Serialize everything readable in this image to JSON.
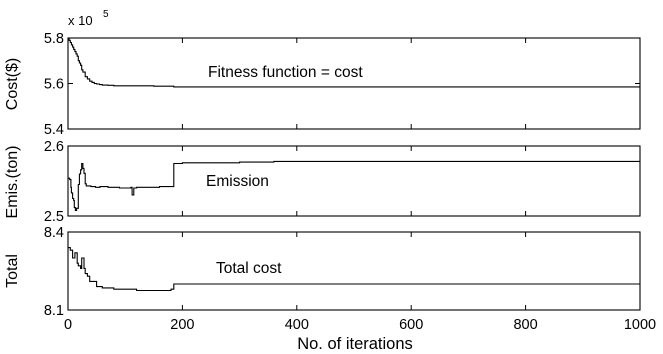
{
  "chart_data": [
    {
      "type": "line",
      "ylabel": "Cost($)",
      "annotation": "Fitness function = cost",
      "multiplier": {
        "base": "x 10",
        "exponent": "5"
      },
      "xlim": [
        0,
        1000
      ],
      "ylim": [
        5.4,
        5.8
      ],
      "yticks": [
        "5.8",
        "5.6",
        "5.4"
      ],
      "ytick_values": [
        5.8,
        5.6,
        5.4
      ],
      "series": [
        {
          "x": [
            0,
            2,
            4,
            6,
            8,
            10,
            12,
            14,
            16,
            18,
            20,
            22,
            24,
            26,
            30,
            34,
            38,
            42,
            46,
            50,
            55,
            60,
            70,
            80,
            100,
            120,
            150,
            180,
            185,
            300,
            500,
            700,
            1000
          ],
          "y": [
            5.8,
            5.79,
            5.78,
            5.77,
            5.76,
            5.75,
            5.74,
            5.73,
            5.72,
            5.7,
            5.69,
            5.68,
            5.66,
            5.65,
            5.63,
            5.62,
            5.61,
            5.605,
            5.6,
            5.598,
            5.595,
            5.593,
            5.592,
            5.59,
            5.59,
            5.59,
            5.588,
            5.588,
            5.585,
            5.585,
            5.585,
            5.585,
            5.585
          ]
        }
      ]
    },
    {
      "type": "line",
      "ylabel": "Emis.(ton)",
      "annotation": "Emission",
      "xlim": [
        0,
        1000
      ],
      "ylim": [
        2.5,
        2.6
      ],
      "yticks": [
        "2.6",
        "2.5"
      ],
      "ytick_values": [
        2.6,
        2.5
      ],
      "series": [
        {
          "x": [
            0,
            3,
            5,
            6,
            8,
            10,
            11,
            13,
            15,
            18,
            20,
            22,
            24,
            26,
            28,
            30,
            32,
            36,
            40,
            48,
            56,
            70,
            90,
            110,
            112,
            115,
            120,
            140,
            160,
            180,
            185,
            200,
            240,
            300,
            360,
            420,
            600,
            800,
            1000
          ],
          "y": [
            2.554,
            2.552,
            2.541,
            2.533,
            2.525,
            2.522,
            2.512,
            2.508,
            2.511,
            2.545,
            2.56,
            2.566,
            2.575,
            2.568,
            2.561,
            2.546,
            2.543,
            2.543,
            2.542,
            2.541,
            2.542,
            2.541,
            2.54,
            2.541,
            2.53,
            2.54,
            2.541,
            2.541,
            2.542,
            2.542,
            2.575,
            2.576,
            2.576,
            2.577,
            2.578,
            2.578,
            2.578,
            2.578,
            2.578
          ]
        }
      ]
    },
    {
      "type": "line",
      "ylabel": "Total",
      "annotation": "Total cost",
      "xlim": [
        0,
        1000
      ],
      "ylim": [
        8.1,
        8.4
      ],
      "yticks": [
        "8.4",
        "8.1"
      ],
      "ytick_values": [
        8.4,
        8.1
      ],
      "series": [
        {
          "x": [
            0,
            4,
            8,
            12,
            16,
            18,
            22,
            24,
            28,
            30,
            34,
            38,
            44,
            50,
            55,
            60,
            70,
            80,
            100,
            120,
            150,
            180,
            185,
            300,
            500,
            700,
            1000
          ],
          "y": [
            8.34,
            8.33,
            8.3,
            8.32,
            8.28,
            8.27,
            8.26,
            8.3,
            8.26,
            8.24,
            8.23,
            8.21,
            8.21,
            8.19,
            8.19,
            8.185,
            8.185,
            8.18,
            8.18,
            8.175,
            8.175,
            8.18,
            8.2,
            8.2,
            8.2,
            8.2,
            8.2
          ]
        }
      ]
    }
  ],
  "xaxis": {
    "label": "No. of iterations",
    "ticks": [
      "0",
      "200",
      "400",
      "600",
      "800",
      "1000"
    ],
    "tick_values": [
      0,
      200,
      400,
      600,
      800,
      1000
    ]
  },
  "colors": {
    "line": "#000000",
    "frame": "#000000",
    "background": "#ffffff"
  }
}
